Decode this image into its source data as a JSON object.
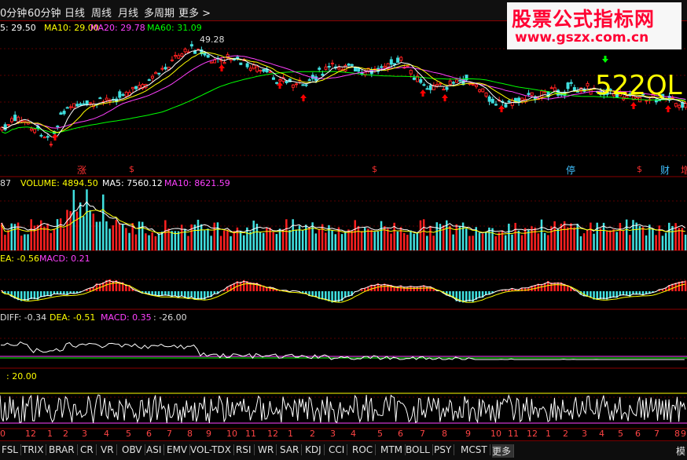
{
  "toolbar": {
    "tabs": [
      "0分钟",
      "60分钟",
      "日线",
      "周线",
      "月线",
      "多周期",
      "更多 >"
    ],
    "colors": {
      "text": "#e8e8e8",
      "border": "#800000"
    }
  },
  "watermark": {
    "title": "股票公式指标网",
    "url": "www.gszx.com.cn"
  },
  "main_panel": {
    "legend": {
      "ma5": "5: 29.50",
      "ma10": "MA10: 29.00",
      "ma20": "MA20: 29.78",
      "ma60": "MA60: 31.09"
    },
    "peak_label": "49.28",
    "big_label": "522QL",
    "markers": [
      "涨",
      "$",
      "$",
      "停",
      "$",
      "财",
      "增"
    ],
    "colors": {
      "up": "#ff2020",
      "down": "#40e0e0",
      "ma5": "#ffffff",
      "ma10": "#ffff00",
      "ma20": "#ff40ff",
      "ma60": "#00ff00",
      "arrow_red": "#ff0000",
      "arrow_green": "#00ff00",
      "big_label": "#ffff00"
    }
  },
  "volume_panel": {
    "legend": {
      "prefix": "87",
      "volume": "VOLUME: 4894.50",
      "ma5": "MA5: 7560.12",
      "ma10": "MA10: 8621.59"
    }
  },
  "macd_panel": {
    "legend": {
      "dea": "EA: -0.56",
      "macd": "MACD: 0.21"
    }
  },
  "diff_panel": {
    "legend": {
      "diff": "DIFF: -0.34",
      "dea": "DEA: -0.51",
      "macd": "MACD: 0.35",
      "extra": ": -26.00"
    }
  },
  "osc_panel": {
    "legend": {
      "value": ": 20.00"
    }
  },
  "date_axis": {
    "marks": [
      "0",
      "12",
      "1",
      "2",
      "3",
      "4",
      "5",
      "6",
      "7",
      "8",
      "9",
      "10",
      "11",
      "12",
      "1",
      "2",
      "3",
      "4",
      "5",
      "6",
      "7",
      "8",
      "9",
      "10",
      "11",
      "12",
      "1",
      "2",
      "3",
      "4",
      "5",
      "6",
      "7",
      "8",
      "9"
    ]
  },
  "indicator_tabs": [
    "FSL",
    "TRIX",
    "BRAR",
    "CR",
    "VR",
    "OBV",
    "ASI",
    "EMV",
    "VOL-TDX",
    "RSI",
    "WR",
    "SAR",
    "KDJ",
    "CCI",
    "ROC",
    "MTM",
    "BOLL",
    "PSY",
    "MCST",
    "更多",
    "模"
  ]
}
